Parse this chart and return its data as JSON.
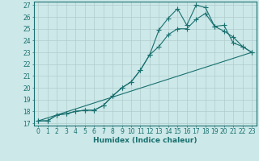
{
  "xlabel": "Humidex (Indice chaleur)",
  "bg_color": "#cce8e8",
  "grid_color": "#b0cccc",
  "line_color": "#1a7070",
  "xlim": [
    -0.5,
    23.5
  ],
  "ylim": [
    16.8,
    27.3
  ],
  "xticks": [
    0,
    1,
    2,
    3,
    4,
    5,
    6,
    7,
    8,
    9,
    10,
    11,
    12,
    13,
    14,
    15,
    16,
    17,
    18,
    19,
    20,
    21,
    22,
    23
  ],
  "yticks": [
    17,
    18,
    19,
    20,
    21,
    22,
    23,
    24,
    25,
    26,
    27
  ],
  "line1_x": [
    0,
    1,
    2,
    3,
    4,
    5,
    6,
    7,
    8,
    9,
    10,
    11,
    12,
    13,
    14,
    15,
    16,
    17,
    18,
    19,
    20,
    21,
    22,
    23
  ],
  "line1_y": [
    17.2,
    17.2,
    17.7,
    17.8,
    18.0,
    18.1,
    18.1,
    18.5,
    19.3,
    20.0,
    20.5,
    21.5,
    22.8,
    24.9,
    25.9,
    26.7,
    25.3,
    27.0,
    26.8,
    25.2,
    25.3,
    23.8,
    23.5,
    23.0
  ],
  "line2_x": [
    0,
    1,
    2,
    3,
    4,
    5,
    6,
    7,
    8,
    9,
    10,
    11,
    12,
    13,
    14,
    15,
    16,
    17,
    18,
    19,
    20,
    21,
    22,
    23
  ],
  "line2_y": [
    17.2,
    17.2,
    17.7,
    17.8,
    18.0,
    18.1,
    18.1,
    18.5,
    19.3,
    20.0,
    20.5,
    21.5,
    22.8,
    23.5,
    24.5,
    25.0,
    25.0,
    25.8,
    26.3,
    25.2,
    24.8,
    24.3,
    23.5,
    23.0
  ],
  "line3_x": [
    0,
    23
  ],
  "line3_y": [
    17.2,
    23.0
  ],
  "xlabel_fontsize": 6.5,
  "tick_fontsize": 5.5
}
